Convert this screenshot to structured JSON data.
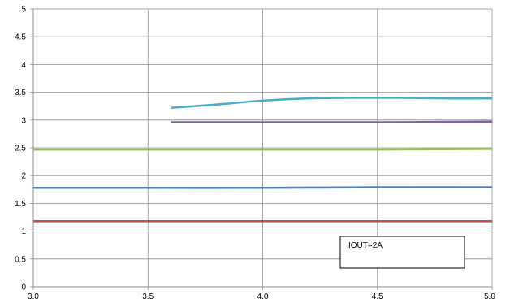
{
  "chart_data": {
    "type": "line",
    "xlim": [
      3.0,
      5.0
    ],
    "ylim": [
      0,
      5
    ],
    "x_ticks": [
      "3.0",
      "3.5",
      "4.0",
      "4.5",
      "5.0"
    ],
    "y_ticks": [
      "0",
      "0.5",
      "1",
      "1.5",
      "2",
      "2.5",
      "3",
      "3.5",
      "4",
      "4.5",
      "5"
    ],
    "grid": true,
    "title": "",
    "xlabel": "",
    "ylabel": "",
    "series": [
      {
        "color": "#4bacc6",
        "x": [
          3.6,
          3.8,
          4.0,
          4.2,
          4.4,
          4.6,
          4.8,
          5.0
        ],
        "y": [
          3.22,
          3.28,
          3.35,
          3.39,
          3.4,
          3.4,
          3.39,
          3.39
        ]
      },
      {
        "color": "#8064a2",
        "x": [
          3.6,
          4.0,
          4.5,
          5.0
        ],
        "y": [
          2.96,
          2.96,
          2.96,
          2.97
        ]
      },
      {
        "color": "#9bbb59",
        "x": [
          3.0,
          3.5,
          4.0,
          4.5,
          5.0
        ],
        "y": [
          2.47,
          2.47,
          2.47,
          2.47,
          2.48
        ]
      },
      {
        "color": "#4f81bd",
        "x": [
          3.0,
          3.5,
          4.0,
          4.5,
          5.0
        ],
        "y": [
          1.78,
          1.78,
          1.78,
          1.79,
          1.79
        ]
      },
      {
        "color": "#c0504d",
        "x": [
          3.0,
          3.5,
          4.0,
          4.5,
          5.0
        ],
        "y": [
          1.18,
          1.18,
          1.18,
          1.18,
          1.18
        ]
      }
    ],
    "annotations": [
      {
        "text": "IOUT=2A"
      }
    ]
  }
}
